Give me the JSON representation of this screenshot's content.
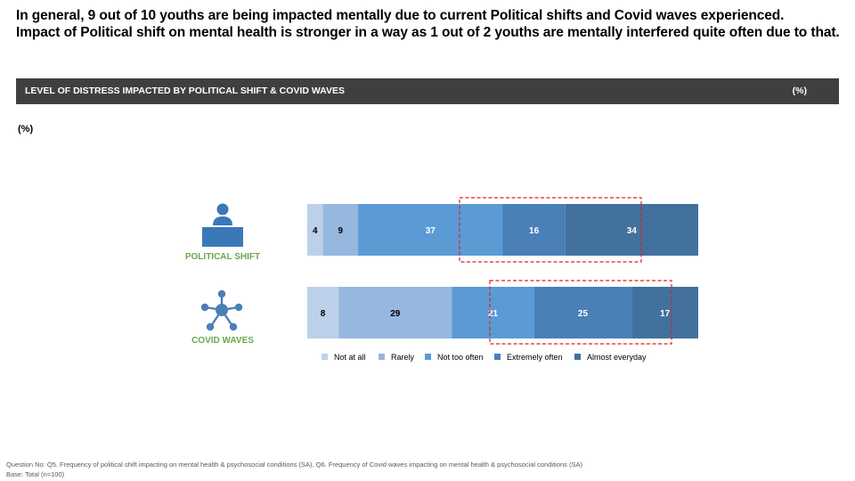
{
  "headline": {
    "line1": "In general, 9 out of 10 youths are being impacted mentally due to current Political shifts and Covid waves experienced.",
    "line2": "Impact of Political shift on mental health is stronger in a way as 1 out of 2 youths are mentally interfered quite often due to that."
  },
  "banner": {
    "title": "LEVEL OF DISTRESS IMPACTED BY POLITICAL SHIFT & COVID WAVES",
    "unit": "(%)"
  },
  "unit_note": "(%)",
  "categories_display": {
    "political": "POLITICAL SHIFT",
    "covid": "COVID WAVES"
  },
  "icons": {
    "political": "person-at-podium-icon",
    "covid": "network-nodes-icon"
  },
  "colors": {
    "label_green": "#6aa84f",
    "highlight_dash": "#e02020"
  },
  "chart_data": {
    "type": "bar",
    "orientation": "horizontal",
    "stacked": true,
    "categories": [
      "POLITICAL SHIFT",
      "COVID WAVES"
    ],
    "series": [
      {
        "name": "Not at all",
        "values": [
          4,
          8
        ],
        "color": "#bcd0ea"
      },
      {
        "name": "Rarely",
        "values": [
          9,
          29
        ],
        "color": "#96b7e0"
      },
      {
        "name": "Not too often",
        "values": [
          37,
          21
        ],
        "color": "#5a9bd5"
      },
      {
        "name": "Extremely often",
        "values": [
          16,
          25
        ],
        "color": "#4a7fb8"
      },
      {
        "name": "Almost everyday",
        "values": [
          34,
          17
        ],
        "color": "#41719c"
      }
    ],
    "xlim": [
      0,
      100
    ],
    "legend": "bottom",
    "grid": false
  },
  "footer": {
    "question": "Question No: Q5. Frequency of political shift impacting on mental health & psychosocial conditions (SA), Q6. Frequency of Covid waves impacting on mental health & psychosocial conditions (SA)",
    "base": "Base: Total (n=100)"
  }
}
